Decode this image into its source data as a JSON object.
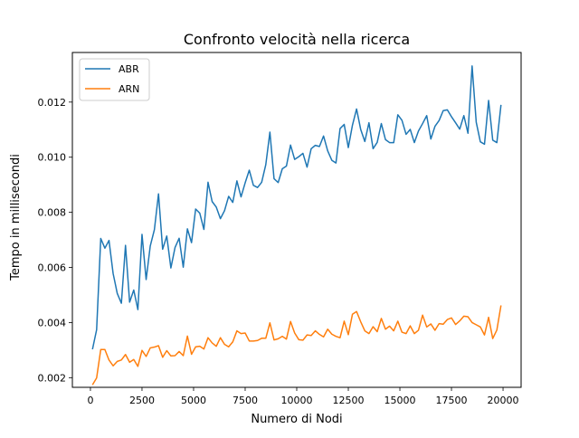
{
  "chart_data": {
    "type": "line",
    "title": "Confronto velocità nella ricerca",
    "xlabel": "Numero di Nodi",
    "ylabel": "Tempo in millisecondi",
    "xlim": [
      -875,
      20875
    ],
    "ylim": [
      0.00165,
      0.0138
    ],
    "xticks": [
      0,
      2500,
      5000,
      7500,
      10000,
      12500,
      15000,
      17500,
      20000
    ],
    "xtick_labels": [
      "0",
      "2500",
      "5000",
      "7500",
      "10000",
      "12500",
      "15000",
      "17500",
      "20000"
    ],
    "yticks": [
      0.002,
      0.004,
      0.006,
      0.008,
      0.01,
      0.012
    ],
    "ytick_labels": [
      "0.002",
      "0.004",
      "0.006",
      "0.008",
      "0.010",
      "0.012"
    ],
    "grid": false,
    "legend": "top-left",
    "x_start": 100,
    "x_step": 200,
    "series": [
      {
        "name": "ABR",
        "color": "#1f77b4",
        "values": [
          0.00303,
          0.00374,
          0.00705,
          0.0067,
          0.00698,
          0.00578,
          0.00506,
          0.0047,
          0.0068,
          0.00474,
          0.00518,
          0.00447,
          0.0072,
          0.00556,
          0.00678,
          0.00737,
          0.00867,
          0.00666,
          0.00714,
          0.00598,
          0.00672,
          0.00706,
          0.00601,
          0.0074,
          0.0069,
          0.00812,
          0.00797,
          0.00738,
          0.00909,
          0.00839,
          0.00819,
          0.00777,
          0.00806,
          0.00858,
          0.00836,
          0.00914,
          0.00856,
          0.00907,
          0.00953,
          0.00898,
          0.0089,
          0.00909,
          0.00973,
          0.01091,
          0.00922,
          0.00908,
          0.00958,
          0.00968,
          0.01044,
          0.00992,
          0.01002,
          0.01014,
          0.00964,
          0.01031,
          0.01043,
          0.01039,
          0.01077,
          0.01023,
          0.00989,
          0.00979,
          0.01104,
          0.01119,
          0.01035,
          0.01116,
          0.01175,
          0.01101,
          0.01057,
          0.01125,
          0.01031,
          0.01054,
          0.01122,
          0.01064,
          0.01053,
          0.01053,
          0.01154,
          0.01134,
          0.01083,
          0.01101,
          0.01053,
          0.01095,
          0.01122,
          0.01151,
          0.01066,
          0.01112,
          0.01133,
          0.01169,
          0.01172,
          0.01147,
          0.01125,
          0.01102,
          0.01151,
          0.01087,
          0.01331,
          0.01127,
          0.01056,
          0.01047,
          0.01206,
          0.01062,
          0.01053,
          0.0119
        ]
      },
      {
        "name": "ARN",
        "color": "#ff7f0e",
        "values": [
          0.00174,
          0.00199,
          0.00302,
          0.00302,
          0.00264,
          0.00243,
          0.00259,
          0.00264,
          0.00284,
          0.00256,
          0.00266,
          0.00241,
          0.00299,
          0.00277,
          0.00308,
          0.00311,
          0.00316,
          0.00274,
          0.00298,
          0.00279,
          0.0028,
          0.00295,
          0.0028,
          0.00351,
          0.00285,
          0.00312,
          0.00314,
          0.00304,
          0.00345,
          0.00326,
          0.00314,
          0.00345,
          0.00321,
          0.00312,
          0.0033,
          0.0037,
          0.0036,
          0.00362,
          0.00333,
          0.00333,
          0.00335,
          0.00343,
          0.00343,
          0.00399,
          0.00337,
          0.00341,
          0.0035,
          0.0034,
          0.00404,
          0.00362,
          0.00338,
          0.00336,
          0.00355,
          0.00353,
          0.0037,
          0.00357,
          0.00348,
          0.00376,
          0.00358,
          0.0035,
          0.00345,
          0.00405,
          0.00356,
          0.0043,
          0.0044,
          0.00403,
          0.0037,
          0.0036,
          0.00385,
          0.00367,
          0.00415,
          0.00376,
          0.00387,
          0.0037,
          0.00405,
          0.00365,
          0.0036,
          0.00388,
          0.0036,
          0.00372,
          0.00427,
          0.00384,
          0.00395,
          0.00372,
          0.00396,
          0.00394,
          0.00411,
          0.00417,
          0.00393,
          0.00406,
          0.00423,
          0.00421,
          0.004,
          0.00392,
          0.00384,
          0.00355,
          0.00419,
          0.00342,
          0.00373,
          0.00462
        ]
      }
    ]
  }
}
